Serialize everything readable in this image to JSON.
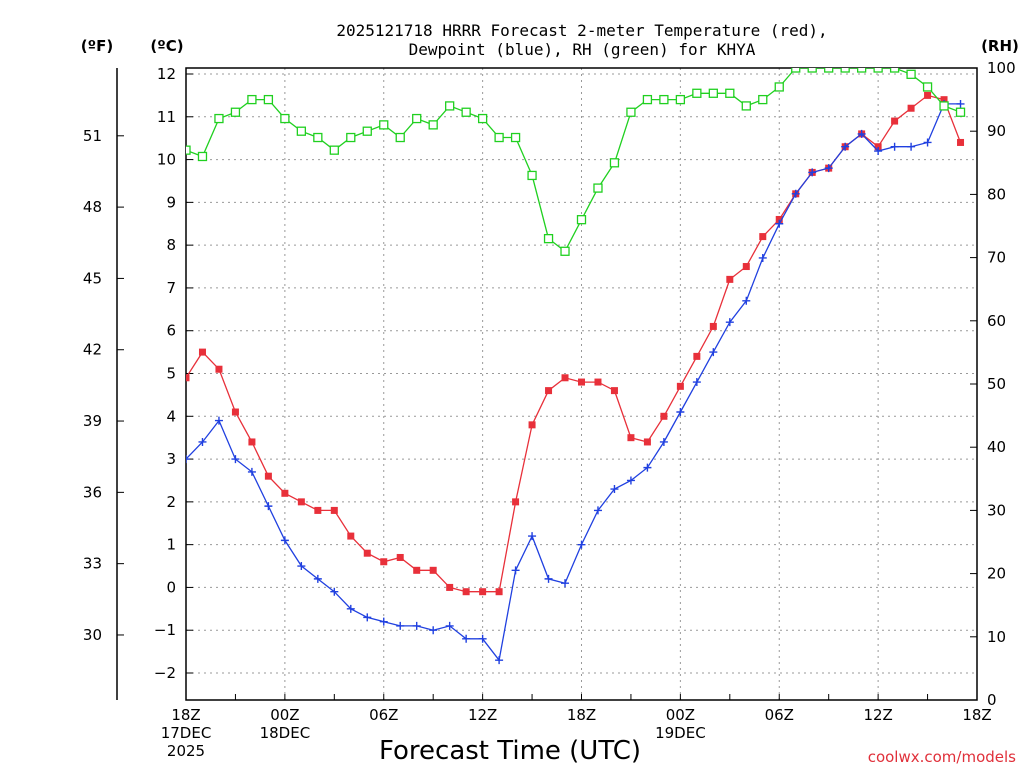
{
  "chart_data": {
    "type": "line",
    "title_line1": "2025121718 HRRR Forecast 2-meter Temperature (red),",
    "title_line2": "Dewpoint (blue), RH (green) for KHYA",
    "xlabel": "Forecast Time (UTC)",
    "unit_f": "(ºF)",
    "unit_c": "(ºC)",
    "unit_rh": "(RH)",
    "credit": "coolwx.com/models",
    "x_range": [
      0,
      48
    ],
    "ylim_c": [
      -2.7,
      12.2
    ],
    "ylim_rh": [
      0,
      100
    ],
    "yticks_c": [
      "12",
      "11",
      "10",
      "9",
      "8",
      "7",
      "6",
      "5",
      "4",
      "3",
      "2",
      "1",
      "0",
      "-1",
      "-2"
    ],
    "yticks_f": [
      "51",
      "48",
      "45",
      "42",
      "39",
      "36",
      "33",
      "30"
    ],
    "yticks_rh": [
      "100",
      "90",
      "80",
      "70",
      "60",
      "50",
      "40",
      "30",
      "20",
      "10",
      "0"
    ],
    "xticks": [
      {
        "hour": 0,
        "lines": [
          "18Z",
          "17DEC",
          "2025"
        ]
      },
      {
        "hour": 6,
        "lines": [
          "00Z",
          "18DEC"
        ]
      },
      {
        "hour": 12,
        "lines": [
          "06Z"
        ]
      },
      {
        "hour": 18,
        "lines": [
          "12Z"
        ]
      },
      {
        "hour": 24,
        "lines": [
          "18Z"
        ]
      },
      {
        "hour": 30,
        "lines": [
          "00Z",
          "19DEC"
        ]
      },
      {
        "hour": 36,
        "lines": [
          "06Z"
        ]
      },
      {
        "hour": 42,
        "lines": [
          "12Z"
        ]
      },
      {
        "hour": 48,
        "lines": [
          "18Z"
        ]
      }
    ],
    "series": [
      {
        "name": "Temperature (°C)",
        "color": "#e8303a",
        "marker": "filled-square",
        "axis": "c",
        "values": [
          4.9,
          5.5,
          5.1,
          4.1,
          3.4,
          2.6,
          2.2,
          2.0,
          1.8,
          1.8,
          1.2,
          0.8,
          0.6,
          0.7,
          0.4,
          0.4,
          0.0,
          -0.1,
          -0.1,
          -0.1,
          2.0,
          3.8,
          4.6,
          4.9,
          4.8,
          4.8,
          4.6,
          3.5,
          3.4,
          4.0,
          4.7,
          5.4,
          6.1,
          7.2,
          7.5,
          8.2,
          8.6,
          9.2,
          9.7,
          9.8,
          10.3,
          10.6,
          10.3,
          10.9,
          11.2,
          11.5,
          11.4,
          10.4
        ]
      },
      {
        "name": "Dewpoint (°C)",
        "color": "#2040e0",
        "marker": "plus",
        "axis": "c",
        "values": [
          3.0,
          3.4,
          3.9,
          3.0,
          2.7,
          1.9,
          1.1,
          0.5,
          0.2,
          -0.1,
          -0.5,
          -0.7,
          -0.8,
          -0.9,
          -0.9,
          -1.0,
          -0.9,
          -1.2,
          -1.2,
          -1.7,
          0.4,
          1.2,
          0.2,
          0.1,
          1.0,
          1.8,
          2.3,
          2.5,
          2.8,
          3.4,
          4.1,
          4.8,
          5.5,
          6.2,
          6.7,
          7.7,
          8.5,
          9.2,
          9.7,
          9.8,
          10.3,
          10.6,
          10.2,
          10.3,
          10.3,
          10.4,
          11.3,
          11.3
        ]
      },
      {
        "name": "RH (%)",
        "color": "#20d020",
        "marker": "open-square",
        "axis": "rh",
        "values": [
          87,
          86,
          92,
          93,
          95,
          95,
          92,
          90,
          89,
          87,
          89,
          90,
          91,
          89,
          92,
          91,
          94,
          93,
          92,
          89,
          89,
          83,
          73,
          71,
          76,
          81,
          85,
          93,
          95,
          95,
          95,
          96,
          96,
          96,
          94,
          95,
          97,
          100,
          100,
          100,
          100,
          100,
          100,
          100,
          99,
          97,
          94,
          93
        ]
      }
    ]
  }
}
